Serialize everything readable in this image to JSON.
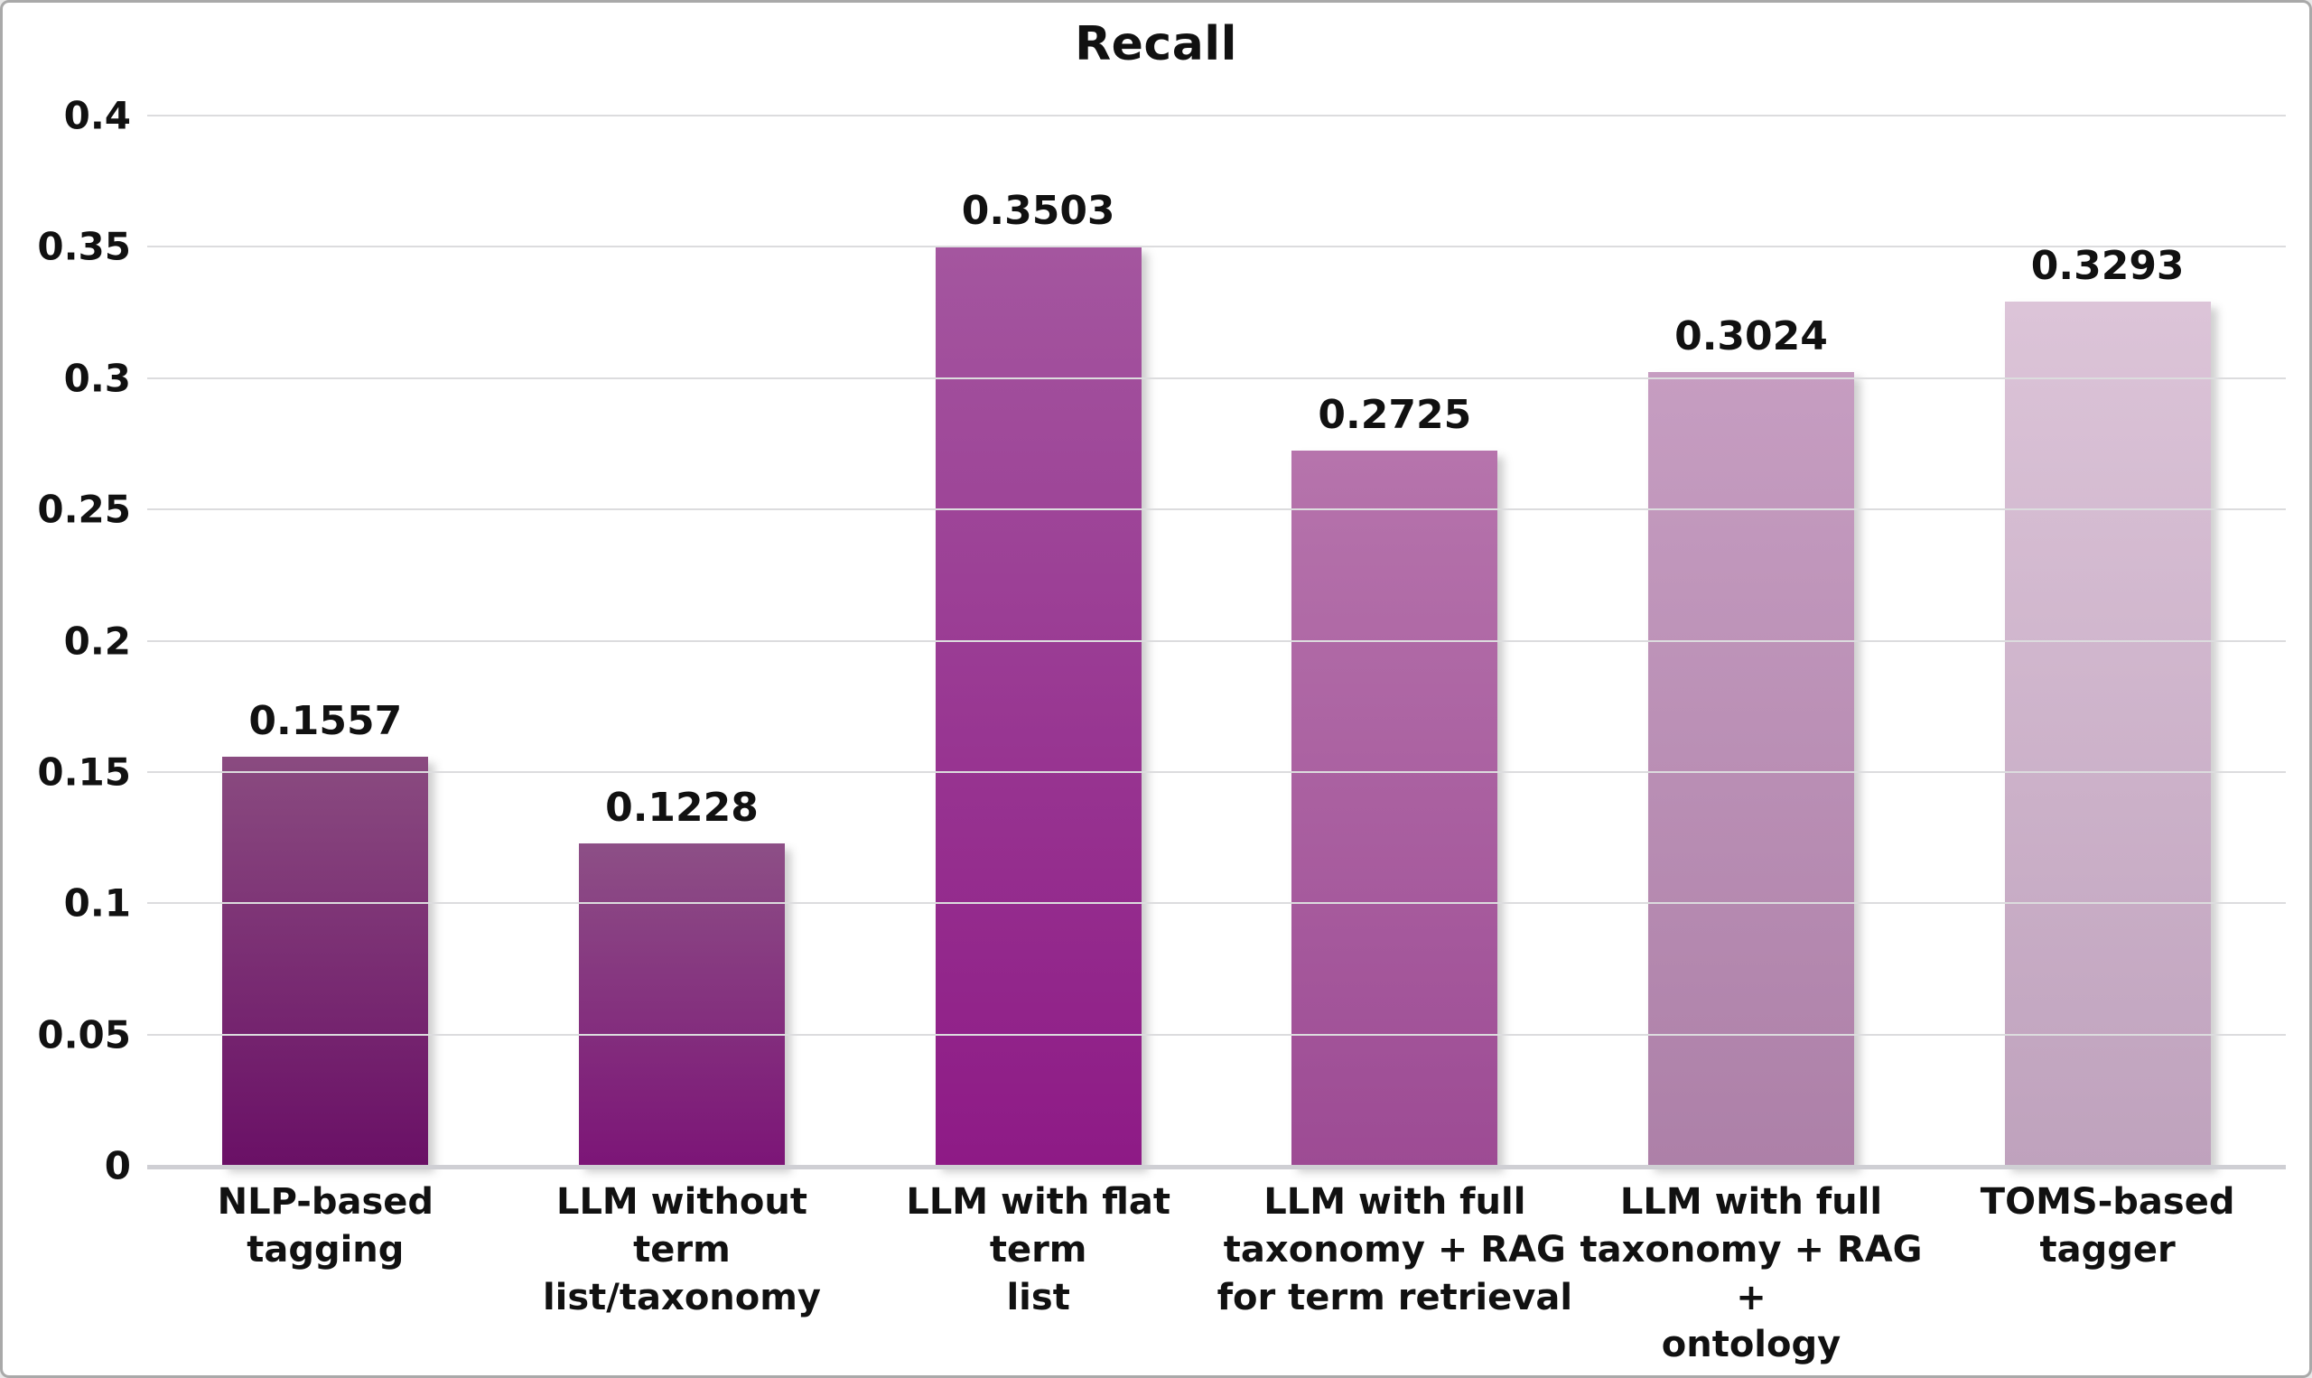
{
  "window": {
    "background": "#ffffff",
    "frame_border_color": "#a9a9a9",
    "gridline_color": "#dcdcde",
    "baseline_color": "#cfcfd4",
    "text_color": "#111111"
  },
  "chart_data": {
    "type": "bar",
    "title": "Recall",
    "categories": [
      "NLP-based tagging",
      "LLM without term\nlist/taxonomy",
      "LLM with flat term\nlist",
      "LLM with full\ntaxonomy + RAG\nfor term retrieval",
      "LLM with full\ntaxonomy + RAG +\nontology",
      "TOMS-based\ntagger"
    ],
    "values": [
      0.1557,
      0.1228,
      0.3503,
      0.2725,
      0.3024,
      0.3293
    ],
    "value_labels": [
      "0.1557",
      "0.1228",
      "0.3503",
      "0.2725",
      "0.3024",
      "0.3293"
    ],
    "bar_colors": [
      {
        "top": "#8a4b80",
        "bottom": "#6a1066"
      },
      {
        "top": "#8d4f86",
        "bottom": "#7c1577"
      },
      {
        "top": "#a4569f",
        "bottom": "#8e1a86"
      },
      {
        "top": "#b674ac",
        "bottom": "#9d4b94"
      },
      {
        "top": "#c69dc1",
        "bottom": "#ad80a8"
      },
      {
        "top": "#dcc4d8",
        "bottom": "#bfa2bd"
      }
    ],
    "xlabel": "",
    "ylabel": "",
    "ylim": [
      0,
      0.4
    ],
    "yticks": [
      {
        "value": 0.4,
        "label": "0.4"
      },
      {
        "value": 0.35,
        "label": "0.35"
      },
      {
        "value": 0.3,
        "label": "0.3"
      },
      {
        "value": 0.25,
        "label": "0.25"
      },
      {
        "value": 0.2,
        "label": "0.2"
      },
      {
        "value": 0.15,
        "label": "0.15"
      },
      {
        "value": 0.1,
        "label": "0.1"
      },
      {
        "value": 0.05,
        "label": "0.05"
      },
      {
        "value": 0,
        "label": "0"
      }
    ],
    "grid": true,
    "legend_position": "none"
  }
}
